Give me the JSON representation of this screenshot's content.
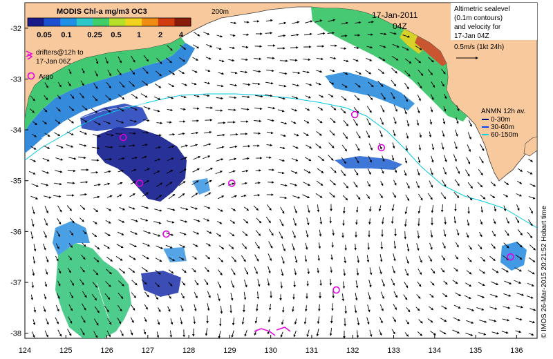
{
  "map": {
    "date": "17-Jan-2011",
    "time": "04Z",
    "contour_label": "200m",
    "x_axis": {
      "min": 124,
      "max": 136.5,
      "ticks": [
        "124",
        "125",
        "126",
        "127",
        "128",
        "129",
        "130",
        "131",
        "132",
        "133",
        "134",
        "135",
        "136"
      ]
    },
    "y_axis": {
      "min": -38.1,
      "max": -31.5,
      "ticks": [
        "-32",
        "-33",
        "-34",
        "-35",
        "-36",
        "-37",
        "-38"
      ]
    },
    "credit": "© IMOS 26-Mar-2015 20:21:52 Hobart time"
  },
  "colorbar": {
    "title": "MODIS Chl-a mg/m3 OC3",
    "labels": [
      "0.05",
      "0.1",
      "0.25",
      "0.5",
      "1",
      "2",
      "4"
    ],
    "colors": [
      "#1a1a8c",
      "#1f4fd1",
      "#1e90e8",
      "#2cc7c9",
      "#3fcf6a",
      "#b7df2a",
      "#f2d21a",
      "#f08c12",
      "#d23b0f",
      "#8a1a0a"
    ]
  },
  "legend_left": {
    "drifters": "drifters@12h to 17-Jan 06Z",
    "drifters_line1": "drifters@12h to",
    "drifters_line2": "17-Jan 06Z",
    "argo": "Argo",
    "drifter_color": "#e000e0",
    "argo_color": "#e000e0"
  },
  "legend_right": {
    "line1": "Altimetric sealevel",
    "line2": "(0.1m contours)",
    "line3": "and velocity for",
    "line4": "17-Jan 04Z",
    "scale": "0.5m/s (1kt 24h)"
  },
  "anmn": {
    "title": "ANMN 12h av.",
    "items": [
      {
        "label": "0-30m",
        "color": "#000080"
      },
      {
        "label": "30-60m",
        "color": "#0040ff"
      },
      {
        "label": "60-150m",
        "color": "#00d8e8"
      }
    ]
  },
  "argo_floats": [
    {
      "lon": 126.4,
      "lat": -34.15
    },
    {
      "lon": 126.8,
      "lat": -35.05
    },
    {
      "lon": 129.05,
      "lat": -35.05
    },
    {
      "lon": 127.45,
      "lat": -36.05
    },
    {
      "lon": 132.05,
      "lat": -33.7
    },
    {
      "lon": 132.7,
      "lat": -34.35
    },
    {
      "lon": 131.6,
      "lat": -37.15
    },
    {
      "lon": 135.85,
      "lat": -36.5
    }
  ]
}
